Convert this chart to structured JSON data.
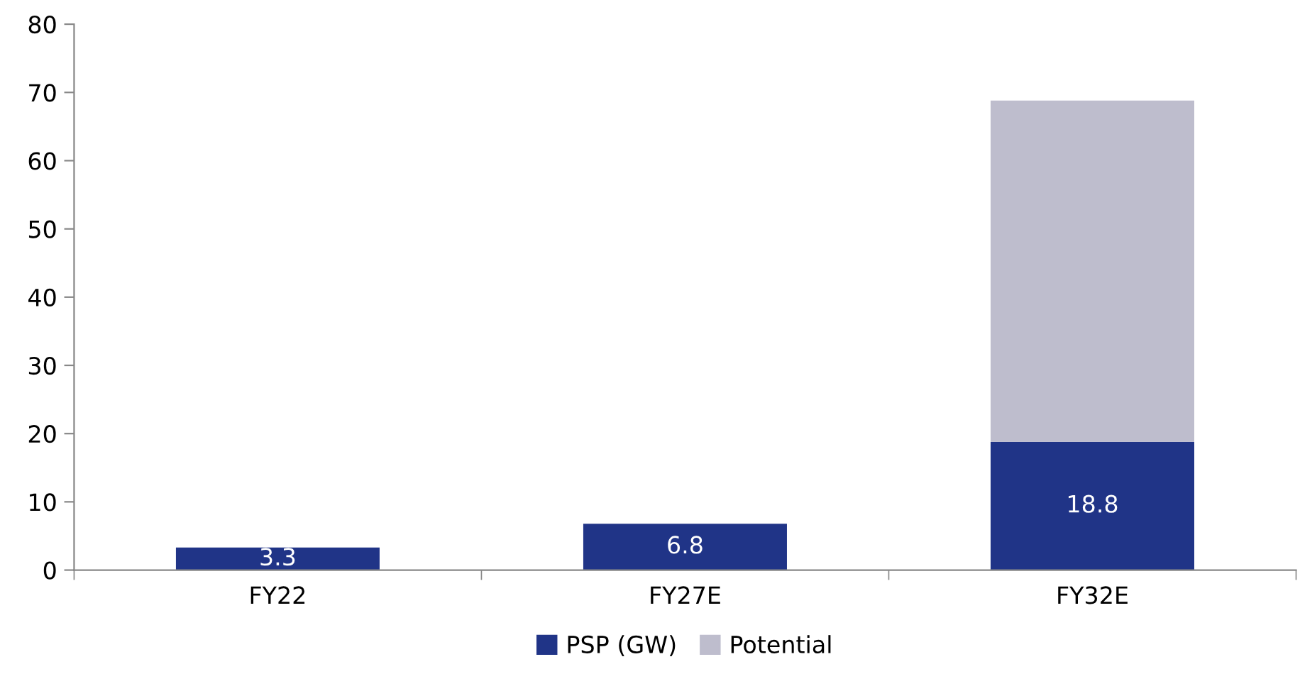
{
  "chart_data": {
    "type": "bar",
    "stacked": true,
    "categories": [
      "FY22",
      "FY27E",
      "FY32E"
    ],
    "series": [
      {
        "name": "PSP (GW)",
        "color": "#203487",
        "values": [
          3.3,
          6.8,
          18.8
        ],
        "value_labels": [
          "3.3",
          "6.8",
          "18.8"
        ]
      },
      {
        "name": "Potential",
        "color": "#bebdcd",
        "values": [
          null,
          null,
          50.0
        ]
      }
    ],
    "ylim": [
      0,
      80
    ],
    "yticks": [
      0,
      10,
      20,
      30,
      40,
      50,
      60,
      70,
      80
    ],
    "grid": false,
    "legend": "bottom"
  }
}
